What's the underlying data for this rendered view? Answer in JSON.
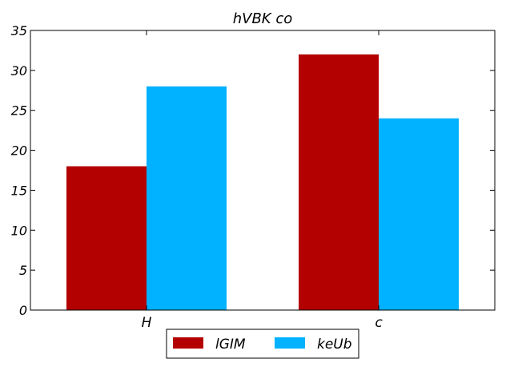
{
  "chart_data": {
    "type": "bar",
    "title": "hVBK  co",
    "xlabel": "",
    "ylabel": "",
    "categories": [
      "H",
      "c"
    ],
    "series": [
      {
        "name": "lGIM",
        "values": [
          18,
          32
        ],
        "color": "#b30000"
      },
      {
        "name": "keUb",
        "values": [
          28,
          24
        ],
        "color": "#00b2ff"
      }
    ],
    "ylim": [
      0,
      35
    ],
    "yticks": [
      "0",
      "5",
      "10",
      "15",
      "20",
      "25",
      "30",
      "35"
    ],
    "grid": false,
    "legend_position": "bottom-center"
  }
}
